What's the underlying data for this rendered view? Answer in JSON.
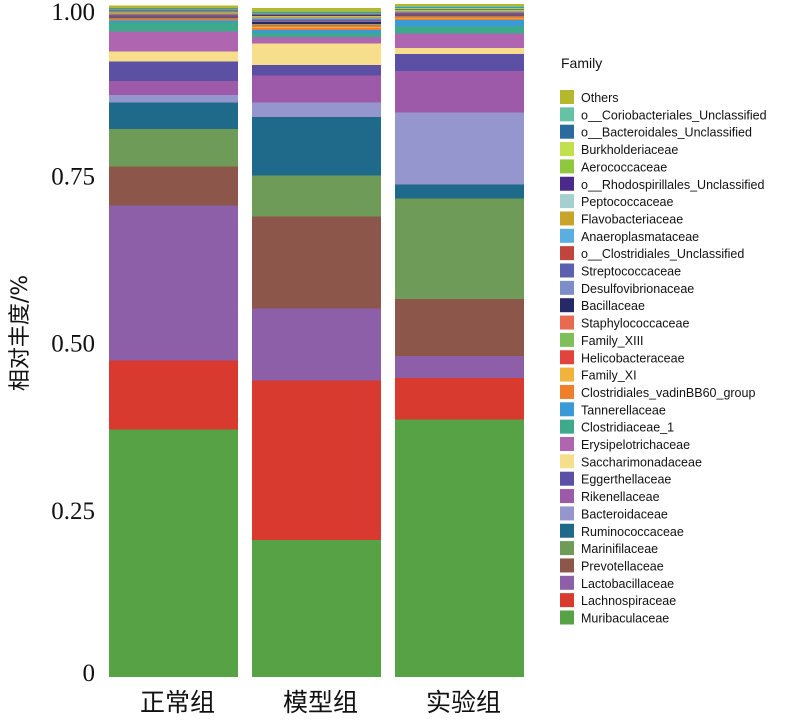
{
  "chart_data": {
    "type": "bar",
    "stacked": true,
    "title": "",
    "xlabel": "",
    "ylabel": "相对丰度/%",
    "ylim": [
      0,
      1
    ],
    "yticks": [
      "0",
      "0.25",
      "0.50",
      "0.75",
      "1.00"
    ],
    "ytick_values": [
      0,
      0.25,
      0.5,
      0.75,
      1.0
    ],
    "categories": [
      "正常组",
      "模型组",
      "实验组"
    ],
    "legend": {
      "title": "Family",
      "placement": "right"
    },
    "series": [
      {
        "name": "Others",
        "color": "#b5b82a",
        "values": [
          0.004,
          0.003,
          0.003
        ]
      },
      {
        "name": "o__Coriobacteriales_Unclassified",
        "color": "#66c2a5",
        "values": [
          0.001,
          0.002,
          0.002
        ]
      },
      {
        "name": "o__Bacteroidales_Unclassified",
        "color": "#2b6a9c",
        "values": [
          0.001,
          0.001,
          0.001
        ]
      },
      {
        "name": "Burkholderiaceae",
        "color": "#c2df4e",
        "values": [
          0.001,
          0.001,
          0.001
        ]
      },
      {
        "name": "Aerococcaceae",
        "color": "#8fc73e",
        "values": [
          0.001,
          0.001,
          0.001
        ]
      },
      {
        "name": "o__Rhodospirillales_Unclassified",
        "color": "#4b2a8c",
        "values": [
          0.001,
          0.002,
          0.001
        ]
      },
      {
        "name": "Peptococcaceae",
        "color": "#a6d0d0",
        "values": [
          0.001,
          0.001,
          0.001
        ]
      },
      {
        "name": "Flavobacteriaceae",
        "color": "#c9a42c",
        "values": [
          0.002,
          0.002,
          0.001
        ]
      },
      {
        "name": "Anaeroplasmataceae",
        "color": "#5aaee0",
        "values": [
          0.002,
          0.002,
          0.002
        ]
      },
      {
        "name": "o__Clostridiales_Unclassified",
        "color": "#c0453d",
        "values": [
          0.001,
          0.002,
          0.001
        ]
      },
      {
        "name": "Streptococcaceae",
        "color": "#5a5fae",
        "values": [
          0.001,
          0.001,
          0.001
        ]
      },
      {
        "name": "Desulfovibrionaceae",
        "color": "#7c8dc7",
        "values": [
          0.001,
          0.001,
          0.001
        ]
      },
      {
        "name": "Bacillaceae",
        "color": "#252a66",
        "values": [
          0.001,
          0.003,
          0.001
        ]
      },
      {
        "name": "Staphylococcaceae",
        "color": "#e86a50",
        "values": [
          0.001,
          0.001,
          0.001
        ]
      },
      {
        "name": "Family_XIII",
        "color": "#7fbf5a",
        "values": [
          0.001,
          0.001,
          0.001
        ]
      },
      {
        "name": "Helicobacteraceae",
        "color": "#e0443c",
        "values": [
          0.001,
          0.002,
          0.001
        ]
      },
      {
        "name": "Family_XI",
        "color": "#f0b43c",
        "values": [
          0.001,
          0.002,
          0.002
        ]
      },
      {
        "name": "Clostridiales_vadinBB60_group",
        "color": "#f07f2c",
        "values": [
          0.001,
          0.003,
          0.002
        ]
      },
      {
        "name": "Tannerellaceae",
        "color": "#3a9ad6",
        "values": [
          0.003,
          0.004,
          0.01
        ]
      },
      {
        "name": "Clostridiaceae_1",
        "color": "#3daa8c",
        "values": [
          0.013,
          0.006,
          0.01
        ]
      },
      {
        "name": "Erysipelotrichaceae",
        "color": "#b065b0",
        "values": [
          0.03,
          0.01,
          0.022
        ]
      },
      {
        "name": "Saccharimonadaceae",
        "color": "#f7de8c",
        "values": [
          0.015,
          0.032,
          0.009
        ]
      },
      {
        "name": "Eggerthellaceae",
        "color": "#5b50a3",
        "values": [
          0.029,
          0.016,
          0.025
        ]
      },
      {
        "name": "Rikenellaceae",
        "color": "#9c5aa8",
        "values": [
          0.021,
          0.04,
          0.062
        ]
      },
      {
        "name": "Bacteroidaceae",
        "color": "#9696cf",
        "values": [
          0.011,
          0.022,
          0.108
        ]
      },
      {
        "name": "Ruminococcaceae",
        "color": "#1f6a8a",
        "values": [
          0.04,
          0.087,
          0.021
        ]
      },
      {
        "name": "Marinifilaceae",
        "color": "#6e9b57",
        "values": [
          0.056,
          0.062,
          0.15
        ]
      },
      {
        "name": "Prevotellaceae",
        "color": "#8c574a",
        "values": [
          0.058,
          0.137,
          0.085
        ]
      },
      {
        "name": "Lactobacillaceae",
        "color": "#8d5fa9",
        "values": [
          0.232,
          0.108,
          0.033
        ]
      },
      {
        "name": "Lachnospiraceae",
        "color": "#d83a2f",
        "values": [
          0.103,
          0.238,
          0.062
        ]
      },
      {
        "name": "Muribaculaceae",
        "color": "#56a244",
        "values": [
          0.37,
          0.205,
          0.385
        ]
      }
    ]
  }
}
